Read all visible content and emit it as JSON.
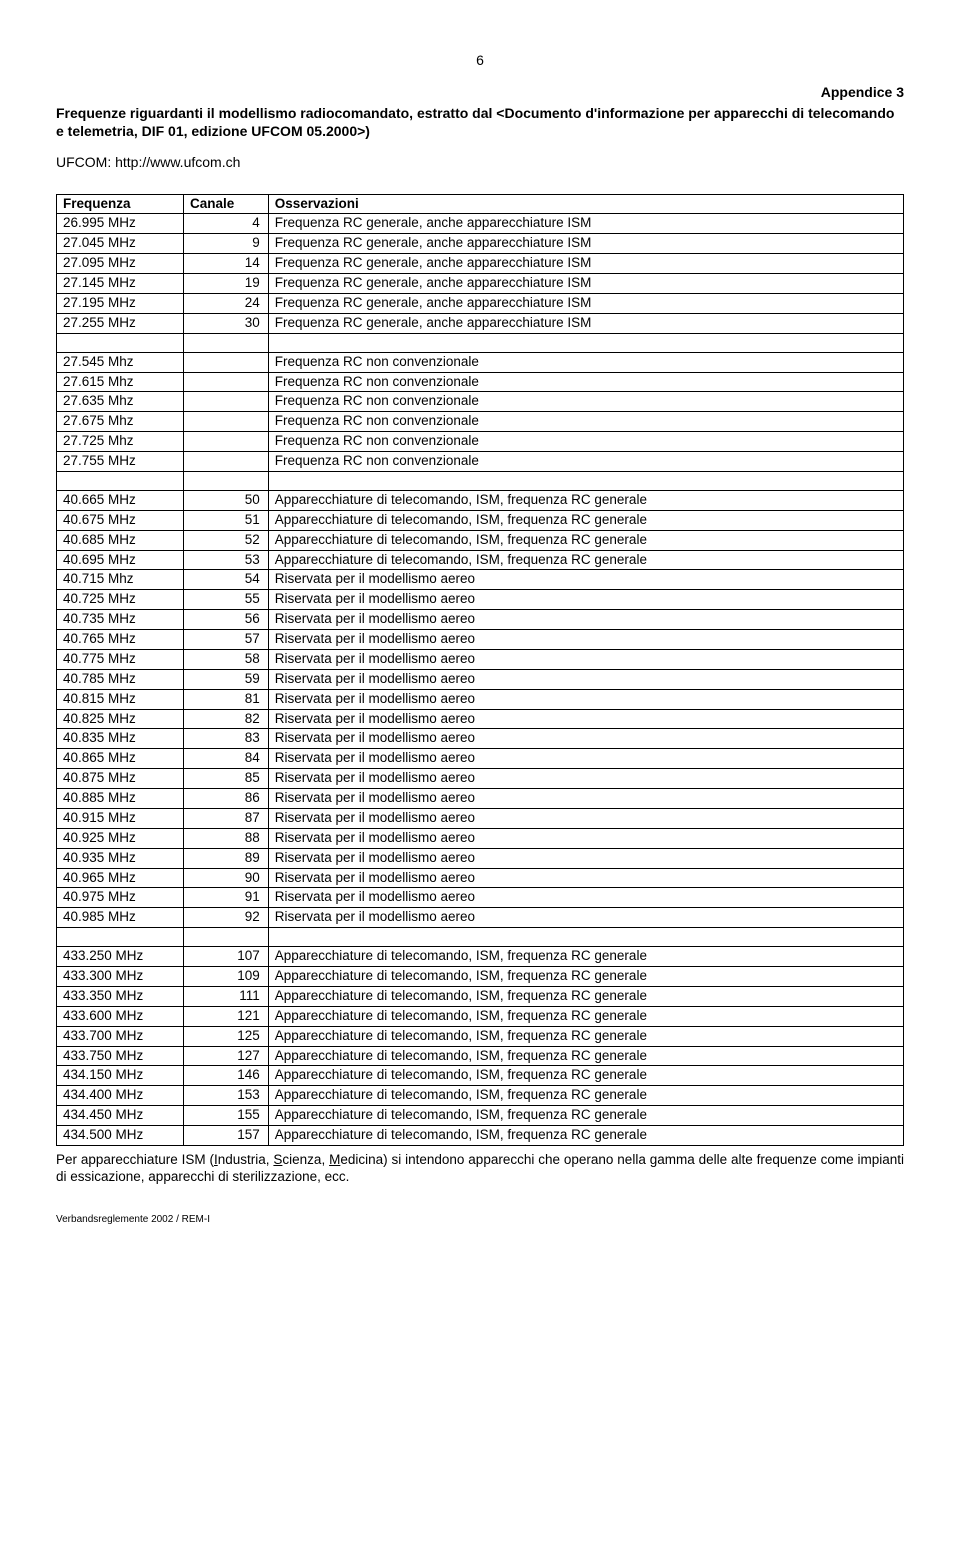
{
  "page_number": "6",
  "appendix_label": "Appendice 3",
  "title": "Frequenze riguardanti il modellismo radiocomandato, estratto dal <Documento d'informazione per apparecchi di telecomando e telemetria, DIF 01, edizione UFCOM 05.2000>)",
  "link_line": "UFCOM: http://www.ufcom.ch",
  "headers": {
    "c1": "Frequenza",
    "c2": "Canale",
    "c3": "Osservazioni"
  },
  "groups": [
    [
      [
        "26.995 MHz",
        "4",
        "Frequenza RC generale, anche apparecchiature ISM"
      ],
      [
        "27.045 MHz",
        "9",
        "Frequenza RC generale, anche apparecchiature ISM"
      ],
      [
        "27.095 MHz",
        "14",
        "Frequenza RC generale, anche apparecchiature ISM"
      ],
      [
        "27.145 MHz",
        "19",
        "Frequenza RC generale, anche apparecchiature ISM"
      ],
      [
        "27.195 MHz",
        "24",
        "Frequenza RC generale, anche apparecchiature ISM"
      ],
      [
        "27.255 MHz",
        "30",
        "Frequenza RC generale, anche apparecchiature ISM"
      ]
    ],
    [
      [
        "27.545 Mhz",
        "",
        "Frequenza RC non convenzionale"
      ],
      [
        "27.615 Mhz",
        "",
        "Frequenza RC non convenzionale"
      ],
      [
        "27.635 Mhz",
        "",
        "Frequenza RC non convenzionale"
      ],
      [
        "27.675 Mhz",
        "",
        "Frequenza RC non convenzionale"
      ],
      [
        "27.725 Mhz",
        "",
        "Frequenza RC non convenzionale"
      ],
      [
        "27.755 MHz",
        "",
        "Frequenza RC non convenzionale"
      ]
    ],
    [
      [
        "40.665 MHz",
        "50",
        "Apparecchiature di telecomando, ISM, frequenza RC generale"
      ],
      [
        "40.675 MHz",
        "51",
        "Apparecchiature di telecomando, ISM, frequenza RC generale"
      ],
      [
        "40.685 MHz",
        "52",
        "Apparecchiature di telecomando, ISM, frequenza RC generale"
      ],
      [
        "40.695 MHz",
        "53",
        "Apparecchiature di telecomando, ISM, frequenza RC generale"
      ],
      [
        "40.715 Mhz",
        "54",
        "Riservata per il modellismo aereo"
      ],
      [
        "40.725 MHz",
        "55",
        "Riservata per il modellismo aereo"
      ],
      [
        "40.735 MHz",
        "56",
        "Riservata per il modellismo aereo"
      ],
      [
        "40.765 MHz",
        "57",
        "Riservata per il modellismo aereo"
      ],
      [
        "40.775 MHz",
        "58",
        "Riservata per il modellismo aereo"
      ],
      [
        "40.785 MHz",
        "59",
        "Riservata per il modellismo aereo"
      ],
      [
        "40.815 MHz",
        "81",
        "Riservata per il modellismo aereo"
      ],
      [
        "40.825 MHz",
        "82",
        "Riservata per il modellismo aereo"
      ],
      [
        "40.835 MHz",
        "83",
        "Riservata per il modellismo aereo"
      ],
      [
        "40.865 MHz",
        "84",
        "Riservata per il modellismo aereo"
      ],
      [
        "40.875 MHz",
        "85",
        "Riservata per il modellismo aereo"
      ],
      [
        "40.885 MHz",
        "86",
        "Riservata per il modellismo aereo"
      ],
      [
        "40.915 MHz",
        "87",
        "Riservata per il modellismo aereo"
      ],
      [
        "40.925 MHz",
        "88",
        "Riservata per il modellismo aereo"
      ],
      [
        "40.935 MHz",
        "89",
        "Riservata per il modellismo aereo"
      ],
      [
        "40.965 MHz",
        "90",
        "Riservata per il modellismo aereo"
      ],
      [
        "40.975 MHz",
        "91",
        "Riservata per il modellismo aereo"
      ],
      [
        "40.985 MHz",
        "92",
        "Riservata per il modellismo aereo"
      ]
    ],
    [
      [
        "433.250 MHz",
        "107",
        "Apparecchiature di telecomando, ISM, frequenza RC generale"
      ],
      [
        "433.300 MHz",
        "109",
        "Apparecchiature di telecomando, ISM, frequenza RC generale"
      ],
      [
        "433.350 MHz",
        "111",
        "Apparecchiature di telecomando, ISM, frequenza RC generale"
      ],
      [
        "433.600 MHz",
        "121",
        "Apparecchiature di telecomando, ISM, frequenza RC generale"
      ],
      [
        "433.700 MHz",
        "125",
        "Apparecchiature di telecomando, ISM, frequenza RC generale"
      ],
      [
        "433.750 MHz",
        "127",
        "Apparecchiature di telecomando, ISM, frequenza RC generale"
      ],
      [
        "434.150 MHz",
        "146",
        "Apparecchiature di telecomando, ISM, frequenza RC generale"
      ],
      [
        "434.400 MHz",
        "153",
        "Apparecchiature di telecomando, ISM, frequenza RC generale"
      ],
      [
        "434.450 MHz",
        "155",
        "Apparecchiature di telecomando, ISM, frequenza RC generale"
      ],
      [
        "434.500 MHz",
        "157",
        "Apparecchiature di telecomando, ISM, frequenza RC generale"
      ]
    ]
  ],
  "footnote_parts": {
    "pre": "Per apparecchiature ISM (",
    "i": "I",
    "post_i": "ndustria, ",
    "s": "S",
    "post_s": "cienza, ",
    "m": "M",
    "post_m": "edicina) si intendono apparecchi che operano nella gamma delle alte frequenze come impianti di essicazione, apparecchi di sterilizzazione, ecc."
  },
  "footer": "Verbandsreglemente 2002 / REM-I"
}
